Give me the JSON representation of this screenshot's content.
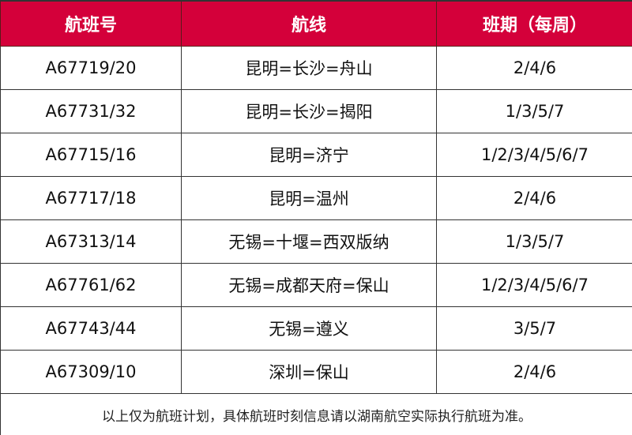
{
  "colors": {
    "header_bg": "#d4003a",
    "header_text": "#ffffff"
  },
  "table": {
    "headers": [
      "航班号",
      "航线",
      "班期（每周）"
    ],
    "rows": [
      [
        "A67719/20",
        "昆明=长沙=舟山",
        "2/4/6"
      ],
      [
        "A67731/32",
        "昆明=长沙=揭阳",
        "1/3/5/7"
      ],
      [
        "A67715/16",
        "昆明=济宁",
        "1/2/3/4/5/6/7"
      ],
      [
        "A67717/18",
        "昆明=温州",
        "2/4/6"
      ],
      [
        "A67313/14",
        "无锡=十堰=西双版纳",
        "1/3/5/7"
      ],
      [
        "A67761/62",
        "无锡=成都天府=保山",
        "1/2/3/4/5/6/7"
      ],
      [
        "A67743/44",
        "无锡=遵义",
        "3/5/7"
      ],
      [
        "A67309/10",
        "深圳=保山",
        "2/4/6"
      ]
    ],
    "note": "以上仅为航班计划，具体航班时刻信息请以湖南航空实际执行航班为准。"
  }
}
